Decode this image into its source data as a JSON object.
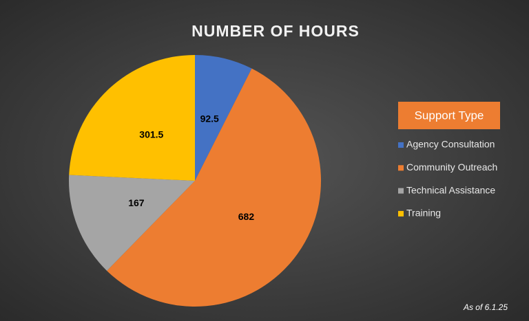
{
  "chart_data": {
    "type": "pie",
    "title": "NUMBER OF HOURS",
    "categories": [
      "Agency Consultation",
      "Community Outreach",
      "Technical Assistance",
      "Training"
    ],
    "values": [
      92.5,
      682,
      167,
      301.5
    ],
    "colors": [
      "#4472c4",
      "#ed7d31",
      "#a5a5a5",
      "#ffc000"
    ],
    "legend_title": "Support Type",
    "legend": "right",
    "annotation": "As of 6.1.25"
  }
}
